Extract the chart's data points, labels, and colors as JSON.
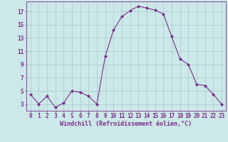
{
  "x": [
    0,
    1,
    2,
    3,
    4,
    5,
    6,
    7,
    8,
    9,
    10,
    11,
    12,
    13,
    14,
    15,
    16,
    17,
    18,
    19,
    20,
    21,
    22,
    23
  ],
  "y": [
    4.5,
    3.0,
    4.2,
    2.5,
    3.2,
    5.0,
    4.8,
    4.2,
    3.0,
    10.2,
    14.2,
    16.2,
    17.1,
    17.8,
    17.5,
    17.2,
    16.6,
    13.2,
    9.8,
    9.0,
    6.0,
    5.8,
    4.5,
    3.0
  ],
  "line_color": "#7B2D8B",
  "marker": "D",
  "marker_size": 2.0,
  "bg_color": "#cce8e8",
  "grid_color": "#aad0d0",
  "xlabel": "Windchill (Refroidissement éolien,°C)",
  "ylabel_ticks": [
    3,
    5,
    7,
    9,
    11,
    13,
    15,
    17
  ],
  "xlim": [
    -0.5,
    23.5
  ],
  "ylim": [
    2.0,
    18.5
  ],
  "tick_fontsize": 5.5,
  "xlabel_fontsize": 6.0
}
